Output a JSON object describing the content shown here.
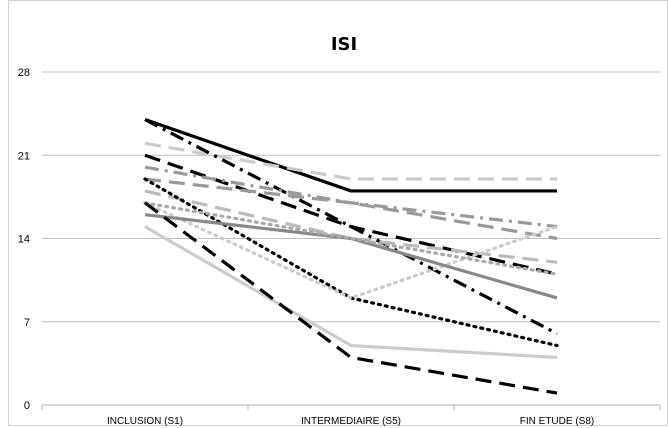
{
  "chart_data": {
    "type": "line",
    "title": "ISI",
    "xlabel": "",
    "ylabel": "",
    "categories": [
      "INCLUSION (S1)",
      "INTERMEDIAIRE (S5)",
      "FIN ETUDE (S8)"
    ],
    "ylim": [
      0,
      28
    ],
    "yticks": [
      0,
      7,
      14,
      21,
      28
    ],
    "grid": true,
    "legend": "none",
    "series": [
      {
        "values": [
          24,
          18,
          18
        ],
        "color": "#000000",
        "dash": "solid"
      },
      {
        "values": [
          22,
          19,
          19
        ],
        "color": "#cccccc",
        "dash": "longdash"
      },
      {
        "values": [
          24,
          15,
          6
        ],
        "color": "#000000",
        "dash": "dashdot"
      },
      {
        "values": [
          21,
          15,
          11
        ],
        "color": "#000000",
        "dash": "longdash"
      },
      {
        "values": [
          20,
          17,
          15
        ],
        "color": "#999999",
        "dash": "dashdot"
      },
      {
        "values": [
          19,
          17,
          14
        ],
        "color": "#999999",
        "dash": "longdash"
      },
      {
        "values": [
          18,
          14,
          12
        ],
        "color": "#bbbbbb",
        "dash": "longdash"
      },
      {
        "values": [
          19,
          9,
          5
        ],
        "color": "#000000",
        "dash": "dot"
      },
      {
        "values": [
          17,
          9,
          15
        ],
        "color": "#cccccc",
        "dash": "dot"
      },
      {
        "values": [
          16,
          14,
          9
        ],
        "color": "#888888",
        "dash": "solid"
      },
      {
        "values": [
          17,
          14,
          11
        ],
        "color": "#aaaaaa",
        "dash": "dot"
      },
      {
        "values": [
          15,
          5,
          4
        ],
        "color": "#cccccc",
        "dash": "solid"
      },
      {
        "values": [
          17,
          4,
          1
        ],
        "color": "#000000",
        "dash": "longdash"
      }
    ]
  }
}
